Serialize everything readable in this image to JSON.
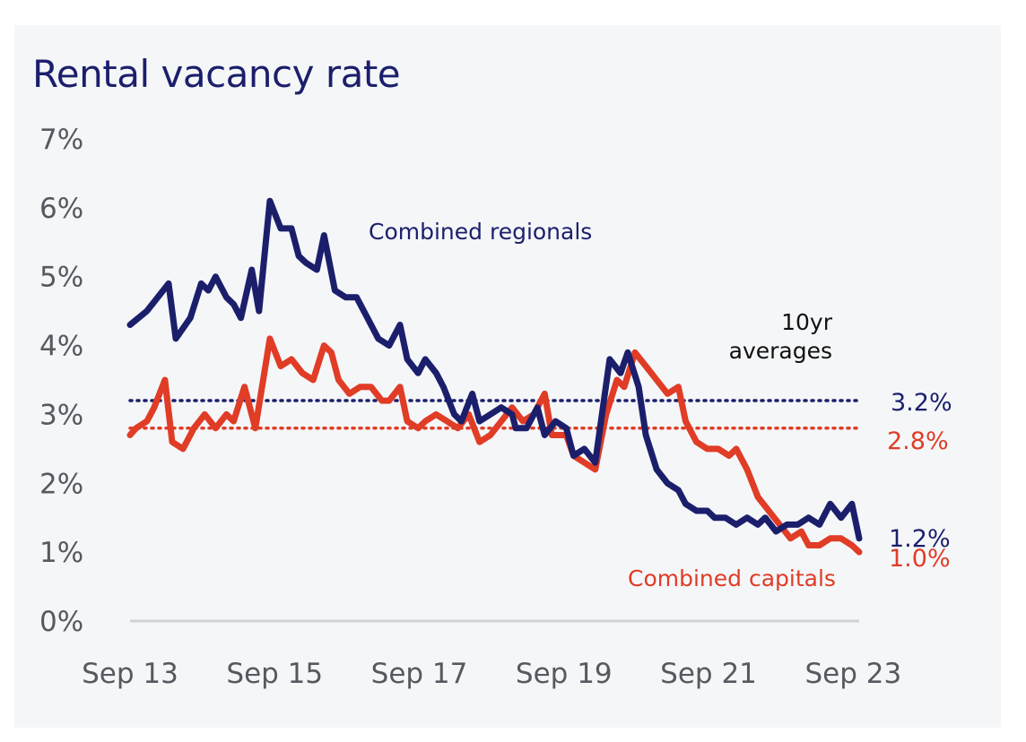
{
  "chart_data": {
    "type": "line",
    "title": "Rental vacancy rate",
    "xlabel": "",
    "ylabel": "",
    "x_ticks": [
      "Sep 13",
      "Sep 15",
      "Sep 17",
      "Sep 19",
      "Sep 21",
      "Sep 23"
    ],
    "y_ticks": [
      "0%",
      "1%",
      "2%",
      "3%",
      "4%",
      "5%",
      "6%",
      "7%"
    ],
    "ylim": [
      0,
      7
    ],
    "xlim": [
      2013.667,
      2023.75
    ],
    "grid": false,
    "colors": {
      "regionals": "#1b1f6b",
      "capitals": "#e03c26",
      "axis": "#cfd2d6"
    },
    "series": [
      {
        "name": "Combined regionals",
        "color": "#1b1f6b",
        "end_label": "1.2%",
        "average": 3.2,
        "average_label": "3.2%",
        "points": [
          [
            2013.667,
            4.3
          ],
          [
            2013.9,
            4.5
          ],
          [
            2014.2,
            4.9
          ],
          [
            2014.3,
            4.1
          ],
          [
            2014.5,
            4.4
          ],
          [
            2014.65,
            4.9
          ],
          [
            2014.75,
            4.8
          ],
          [
            2014.85,
            5.0
          ],
          [
            2015.0,
            4.7
          ],
          [
            2015.1,
            4.6
          ],
          [
            2015.2,
            4.4
          ],
          [
            2015.35,
            5.1
          ],
          [
            2015.45,
            4.5
          ],
          [
            2015.6,
            6.1
          ],
          [
            2015.75,
            5.7
          ],
          [
            2015.9,
            5.7
          ],
          [
            2016.0,
            5.3
          ],
          [
            2016.1,
            5.2
          ],
          [
            2016.25,
            5.1
          ],
          [
            2016.35,
            5.6
          ],
          [
            2016.5,
            4.8
          ],
          [
            2016.65,
            4.7
          ],
          [
            2016.8,
            4.7
          ],
          [
            2016.95,
            4.4
          ],
          [
            2017.1,
            4.1
          ],
          [
            2017.25,
            4.0
          ],
          [
            2017.4,
            4.3
          ],
          [
            2017.5,
            3.8
          ],
          [
            2017.65,
            3.6
          ],
          [
            2017.75,
            3.8
          ],
          [
            2017.9,
            3.6
          ],
          [
            2018.0,
            3.4
          ],
          [
            2018.15,
            3.0
          ],
          [
            2018.25,
            2.9
          ],
          [
            2018.4,
            3.3
          ],
          [
            2018.5,
            2.9
          ],
          [
            2018.65,
            3.0
          ],
          [
            2018.8,
            3.1
          ],
          [
            2018.95,
            3.0
          ],
          [
            2019.0,
            2.8
          ],
          [
            2019.15,
            2.8
          ],
          [
            2019.3,
            3.1
          ],
          [
            2019.4,
            2.7
          ],
          [
            2019.55,
            2.9
          ],
          [
            2019.7,
            2.8
          ],
          [
            2019.8,
            2.4
          ],
          [
            2019.95,
            2.5
          ],
          [
            2020.1,
            2.3
          ],
          [
            2020.3,
            3.8
          ],
          [
            2020.45,
            3.6
          ],
          [
            2020.55,
            3.9
          ],
          [
            2020.7,
            3.4
          ],
          [
            2020.8,
            2.7
          ],
          [
            2020.95,
            2.2
          ],
          [
            2021.1,
            2.0
          ],
          [
            2021.25,
            1.9
          ],
          [
            2021.35,
            1.7
          ],
          [
            2021.5,
            1.6
          ],
          [
            2021.65,
            1.6
          ],
          [
            2021.75,
            1.5
          ],
          [
            2021.9,
            1.5
          ],
          [
            2022.05,
            1.4
          ],
          [
            2022.2,
            1.5
          ],
          [
            2022.35,
            1.4
          ],
          [
            2022.45,
            1.5
          ],
          [
            2022.6,
            1.3
          ],
          [
            2022.75,
            1.4
          ],
          [
            2022.9,
            1.4
          ],
          [
            2023.05,
            1.5
          ],
          [
            2023.2,
            1.4
          ],
          [
            2023.35,
            1.7
          ],
          [
            2023.5,
            1.5
          ],
          [
            2023.65,
            1.7
          ],
          [
            2023.75,
            1.2
          ]
        ]
      },
      {
        "name": "Combined capitals",
        "color": "#e03c26",
        "end_label": "1.0%",
        "average": 2.8,
        "average_label": "2.8%",
        "points": [
          [
            2013.667,
            2.7
          ],
          [
            2013.75,
            2.8
          ],
          [
            2013.9,
            2.9
          ],
          [
            2014.0,
            3.1
          ],
          [
            2014.15,
            3.5
          ],
          [
            2014.25,
            2.6
          ],
          [
            2014.4,
            2.5
          ],
          [
            2014.55,
            2.8
          ],
          [
            2014.7,
            3.0
          ],
          [
            2014.85,
            2.8
          ],
          [
            2015.0,
            3.0
          ],
          [
            2015.1,
            2.9
          ],
          [
            2015.25,
            3.4
          ],
          [
            2015.4,
            2.8
          ],
          [
            2015.6,
            4.1
          ],
          [
            2015.75,
            3.7
          ],
          [
            2015.9,
            3.8
          ],
          [
            2016.05,
            3.6
          ],
          [
            2016.2,
            3.5
          ],
          [
            2016.35,
            4.0
          ],
          [
            2016.45,
            3.9
          ],
          [
            2016.55,
            3.5
          ],
          [
            2016.7,
            3.3
          ],
          [
            2016.85,
            3.4
          ],
          [
            2017.0,
            3.4
          ],
          [
            2017.15,
            3.2
          ],
          [
            2017.25,
            3.2
          ],
          [
            2017.4,
            3.4
          ],
          [
            2017.5,
            2.9
          ],
          [
            2017.65,
            2.8
          ],
          [
            2017.75,
            2.9
          ],
          [
            2017.9,
            3.0
          ],
          [
            2018.05,
            2.9
          ],
          [
            2018.2,
            2.8
          ],
          [
            2018.35,
            3.0
          ],
          [
            2018.5,
            2.6
          ],
          [
            2018.65,
            2.7
          ],
          [
            2018.8,
            2.9
          ],
          [
            2018.95,
            3.1
          ],
          [
            2019.1,
            2.9
          ],
          [
            2019.25,
            3.0
          ],
          [
            2019.4,
            3.3
          ],
          [
            2019.5,
            2.7
          ],
          [
            2019.7,
            2.7
          ],
          [
            2019.8,
            2.4
          ],
          [
            2019.95,
            2.3
          ],
          [
            2020.1,
            2.2
          ],
          [
            2020.25,
            3.0
          ],
          [
            2020.4,
            3.5
          ],
          [
            2020.5,
            3.4
          ],
          [
            2020.65,
            3.9
          ],
          [
            2020.8,
            3.7
          ],
          [
            2020.95,
            3.5
          ],
          [
            2021.1,
            3.3
          ],
          [
            2021.25,
            3.4
          ],
          [
            2021.35,
            2.9
          ],
          [
            2021.5,
            2.6
          ],
          [
            2021.65,
            2.5
          ],
          [
            2021.8,
            2.5
          ],
          [
            2021.95,
            2.4
          ],
          [
            2022.05,
            2.5
          ],
          [
            2022.2,
            2.2
          ],
          [
            2022.35,
            1.8
          ],
          [
            2022.5,
            1.6
          ],
          [
            2022.65,
            1.4
          ],
          [
            2022.8,
            1.2
          ],
          [
            2022.95,
            1.3
          ],
          [
            2023.05,
            1.1
          ],
          [
            2023.2,
            1.1
          ],
          [
            2023.35,
            1.2
          ],
          [
            2023.5,
            1.2
          ],
          [
            2023.65,
            1.1
          ],
          [
            2023.75,
            1.0
          ]
        ]
      }
    ],
    "annotations": {
      "regionals_label": "Combined regionals",
      "capitals_label": "Combined capitals",
      "avg_label_line1": "10yr",
      "avg_label_line2": "averages"
    }
  }
}
